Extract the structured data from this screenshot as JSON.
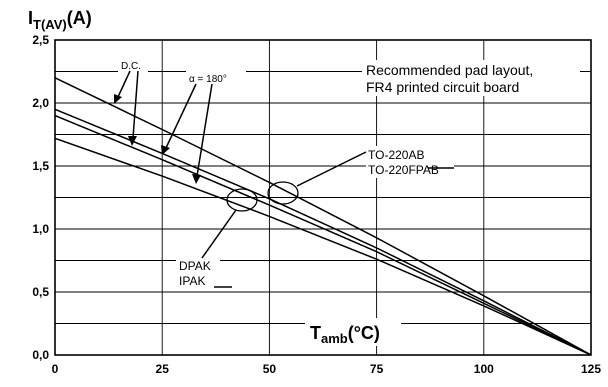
{
  "chart_data": {
    "type": "line",
    "title": "",
    "ylabel_main": "I",
    "ylabel_sub": "T(AV)",
    "ylabel_unit": "(A)",
    "xlabel_main": "T",
    "xlabel_sub": "amb",
    "xlabel_unit": "(°C)",
    "xlim": [
      0,
      125
    ],
    "ylim": [
      0,
      2.5
    ],
    "x_ticks": [
      0,
      25,
      50,
      75,
      100,
      125
    ],
    "x_tick_labels": [
      "0",
      "25",
      "50",
      "75",
      "100",
      "125"
    ],
    "y_ticks": [
      0,
      0.5,
      1.0,
      1.5,
      2.0,
      2.5
    ],
    "y_tick_labels": [
      "0,0",
      "0,5",
      "1,0",
      "1,5",
      "2,0",
      "2,5"
    ],
    "grid": true,
    "series": [
      {
        "x": [
          0,
          25,
          50,
          75,
          100,
          125
        ],
        "values": [
          2.2,
          1.79,
          1.37,
          0.93,
          0.47,
          0.0
        ]
      },
      {
        "x": [
          0,
          25,
          50,
          75,
          100,
          125
        ],
        "values": [
          1.95,
          1.6,
          1.24,
          0.85,
          0.43,
          0.0
        ]
      },
      {
        "x": [
          0,
          25,
          50,
          75,
          100,
          125
        ],
        "values": [
          1.9,
          1.55,
          1.19,
          0.82,
          0.41,
          0.0
        ]
      },
      {
        "x": [
          0,
          25,
          50,
          75,
          100,
          125
        ],
        "values": [
          1.72,
          1.42,
          1.1,
          0.76,
          0.39,
          0.0
        ]
      }
    ],
    "annotations": {
      "dc": "D.C.",
      "alpha": "α = 180°",
      "note_line1": "Recommended pad layout,",
      "note_line2": "FR4 printed circuit board",
      "to220_line1": "TO-220AB",
      "to220_line2": "TO-220FPAB",
      "dpak_line1": "DPAK",
      "dpak_line2": "IPAK"
    }
  }
}
